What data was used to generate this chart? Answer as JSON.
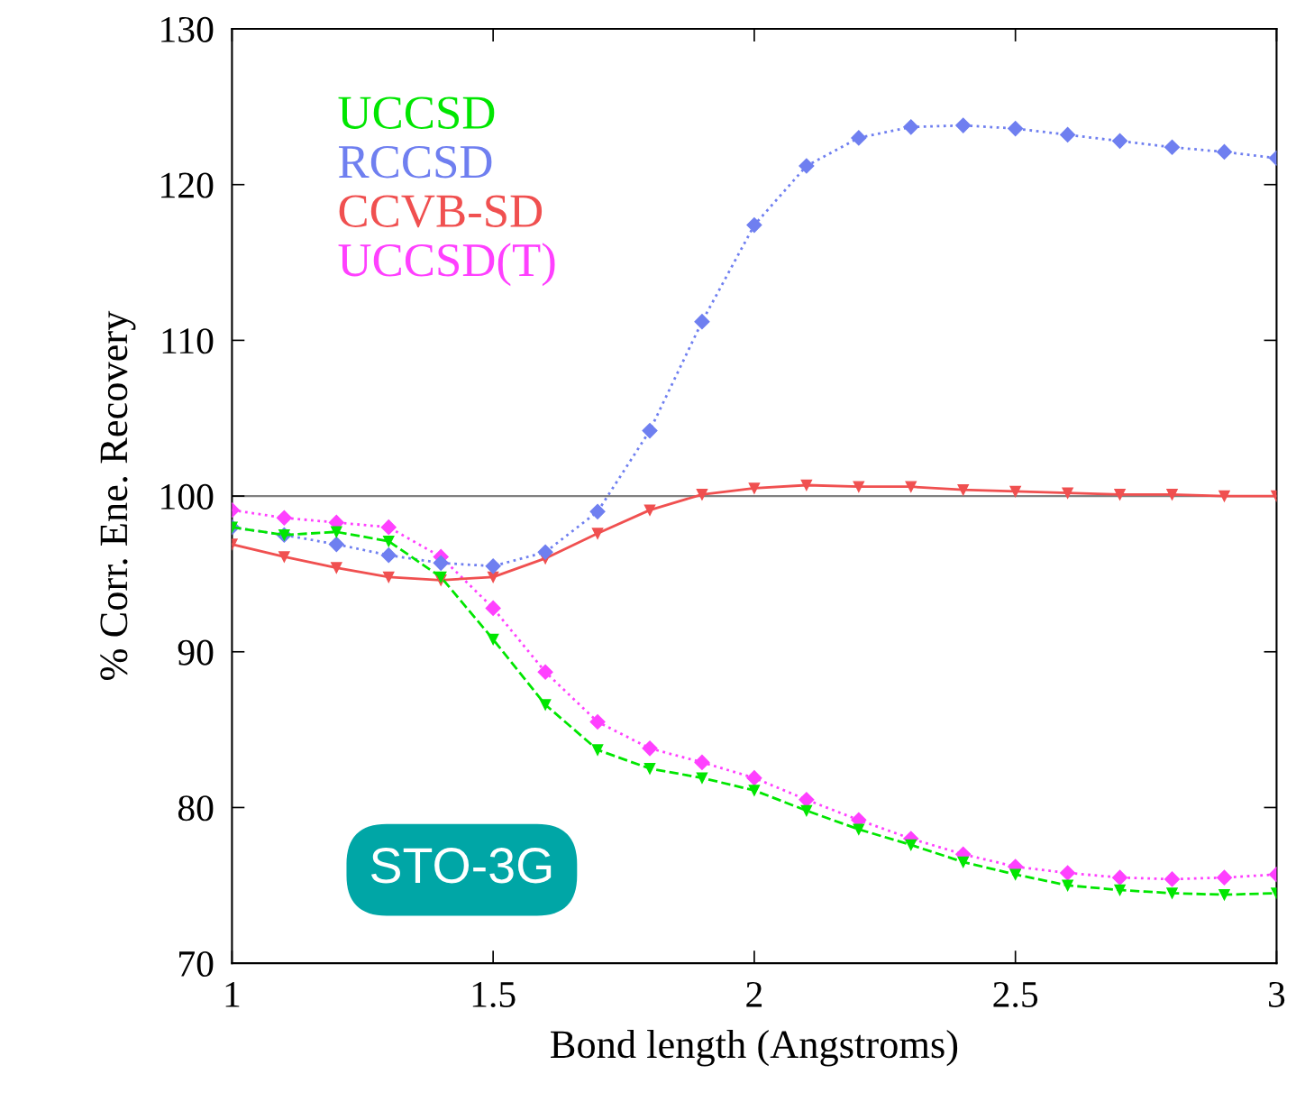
{
  "chart_data": {
    "type": "line",
    "xlabel": "Bond length (Angstroms)",
    "ylabel": "% Corr. Ene. Recovery",
    "x": [
      1.0,
      1.1,
      1.2,
      1.3,
      1.4,
      1.5,
      1.6,
      1.7,
      1.8,
      1.9,
      2.0,
      2.1,
      2.2,
      2.3,
      2.4,
      2.5,
      2.6,
      2.7,
      2.8,
      2.9,
      3.0
    ],
    "series": [
      {
        "name": "UCCSD",
        "color": "#00e600",
        "marker": "triangle",
        "line_style": "dashed",
        "values": [
          98.0,
          97.5,
          97.7,
          97.1,
          94.8,
          90.8,
          86.6,
          83.7,
          82.5,
          81.9,
          81.1,
          79.8,
          78.6,
          77.6,
          76.5,
          75.7,
          75.0,
          74.7,
          74.5,
          74.4,
          74.5
        ]
      },
      {
        "name": "RCCSD",
        "color": "#6f7ff0",
        "marker": "diamond",
        "line_style": "dotted",
        "values": [
          98.0,
          97.5,
          96.9,
          96.2,
          95.7,
          95.5,
          96.4,
          99.0,
          104.2,
          111.2,
          117.4,
          121.2,
          123.0,
          123.7,
          123.8,
          123.6,
          123.2,
          122.8,
          122.4,
          122.1,
          121.7
        ]
      },
      {
        "name": "CCVB-SD",
        "color": "#f05050",
        "marker": "triangle",
        "line_style": "solid",
        "values": [
          96.9,
          96.1,
          95.4,
          94.8,
          94.6,
          94.8,
          96.0,
          97.6,
          99.1,
          100.1,
          100.5,
          100.7,
          100.6,
          100.6,
          100.4,
          100.3,
          100.2,
          100.1,
          100.1,
          100.0,
          100.0
        ]
      },
      {
        "name": "UCCSD(T)",
        "color": "#ff40ff",
        "marker": "diamond",
        "line_style": "dotted",
        "values": [
          99.1,
          98.6,
          98.3,
          98.0,
          96.1,
          92.8,
          88.7,
          85.5,
          83.8,
          82.9,
          81.9,
          80.5,
          79.2,
          78.0,
          77.0,
          76.2,
          75.8,
          75.5,
          75.4,
          75.5,
          75.7
        ]
      }
    ],
    "xlim": [
      1,
      3
    ],
    "xticks": [
      1,
      1.5,
      2,
      2.5,
      3
    ],
    "ylim": [
      70,
      130
    ],
    "yticks": [
      70,
      80,
      90,
      100,
      110,
      120,
      130
    ],
    "ref_lines": [
      {
        "axis": "y",
        "value": 100,
        "color": "#808080"
      }
    ],
    "annotations": [
      "STO-3G"
    ],
    "grid": false,
    "legend": "top left"
  }
}
